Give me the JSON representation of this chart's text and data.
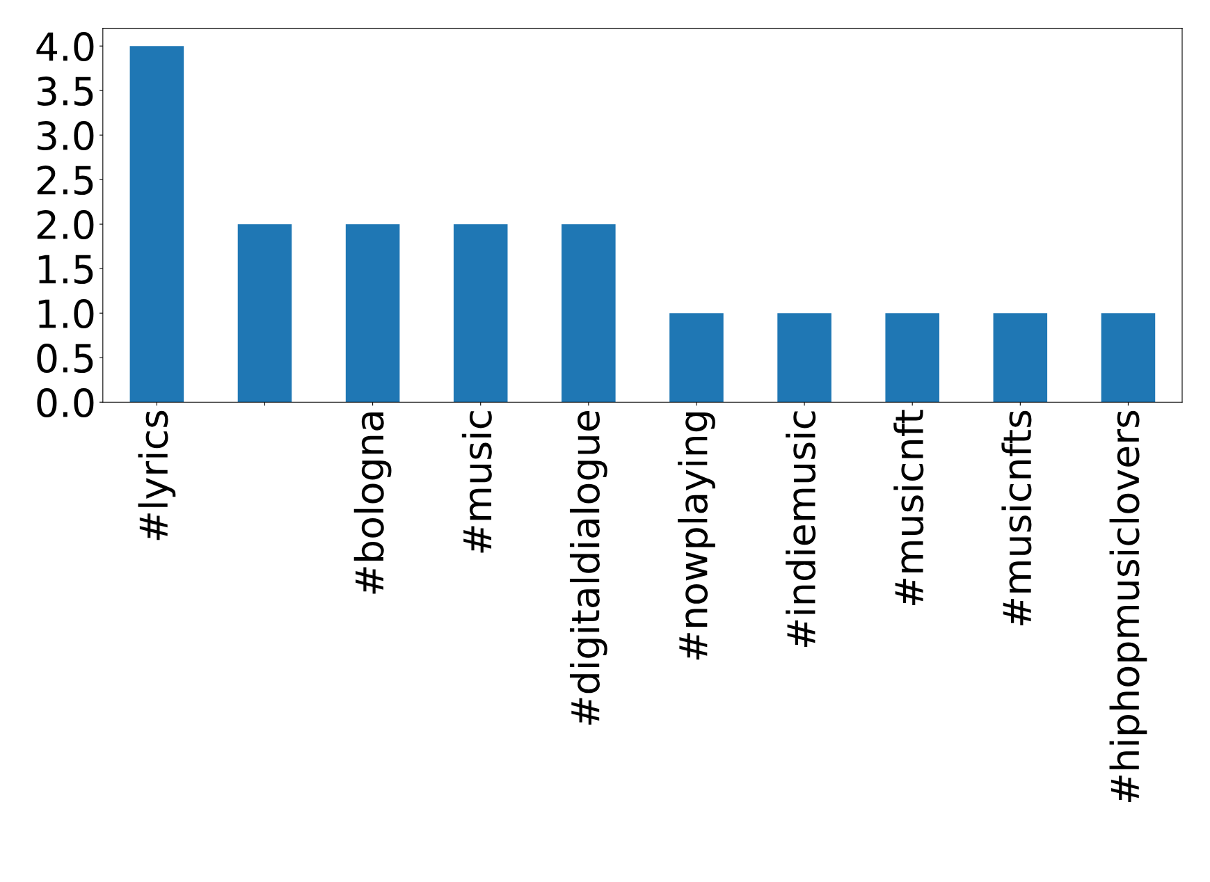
{
  "chart_data": {
    "type": "bar",
    "categories": [
      "#lyrics",
      null,
      "#bologna",
      "#music",
      "#digitaldialogue",
      "#nowplaying",
      "#indiemusic",
      "#musicnft",
      "#musicnfts",
      "#hiphopmusiclovers"
    ],
    "values": [
      4,
      2,
      2,
      2,
      2,
      1,
      1,
      1,
      1,
      1
    ],
    "color": "#1f77b4",
    "ylim": [
      0,
      4.2
    ],
    "yticks": [
      {
        "value": 0,
        "label": "0.0"
      },
      {
        "value": 0.5,
        "label": "0.5"
      },
      {
        "value": 1,
        "label": "1.0"
      },
      {
        "value": 1.5,
        "label": "1.5"
      },
      {
        "value": 2,
        "label": "2.0"
      },
      {
        "value": 2.5,
        "label": "2.5"
      },
      {
        "value": 3,
        "label": "3.0"
      },
      {
        "value": 3.5,
        "label": "3.5"
      },
      {
        "value": 4,
        "label": "4.0"
      }
    ],
    "grid": false
  }
}
